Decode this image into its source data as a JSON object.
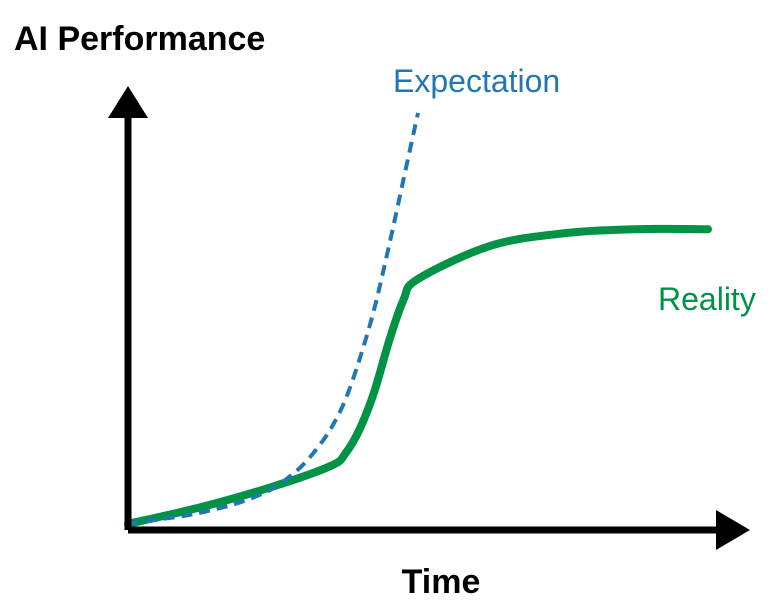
{
  "chart_data": {
    "type": "line",
    "title": "",
    "ylabel": "AI Performance",
    "xlabel": "Time",
    "grid": false,
    "legend": "none",
    "series": [
      {
        "name": "Expectation",
        "color": "#1f77b4",
        "style": "dashed",
        "x": [
          0,
          0.1,
          0.2,
          0.3,
          0.4,
          0.5,
          0.55,
          0.6,
          0.65,
          0.7,
          0.75,
          0.8,
          0.85,
          0.9,
          0.95,
          1.0
        ],
        "y": [
          0.01,
          0.02,
          0.03,
          0.045,
          0.065,
          0.095,
          0.12,
          0.15,
          0.19,
          0.24,
          0.31,
          0.41,
          0.53,
          0.68,
          0.84,
          1.0
        ]
      },
      {
        "name": "Reality",
        "color": "#009245",
        "style": "solid",
        "x": [
          0,
          0.25,
          0.5,
          0.7,
          0.75,
          0.8,
          0.85,
          0.9,
          0.95,
          1.0,
          1.25,
          1.5,
          1.75,
          2.0
        ],
        "y": [
          0.01,
          0.05,
          0.1,
          0.15,
          0.18,
          0.24,
          0.33,
          0.45,
          0.55,
          0.6,
          0.68,
          0.71,
          0.72,
          0.72
        ]
      }
    ]
  }
}
